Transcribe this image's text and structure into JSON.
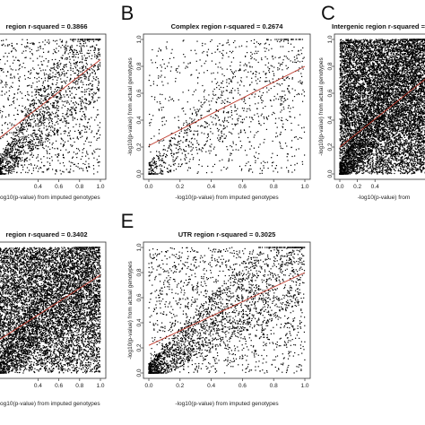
{
  "chart_data": [
    {
      "type": "scatter",
      "letter": "",
      "title": "region r-squared = 0.3866",
      "xlabel": "-log10(p-value) from imputed genotypes",
      "ylabel": "",
      "xticks": [
        "0.4",
        "0.6",
        "0.8",
        "1.0"
      ],
      "yticks": [],
      "xlim": [
        0,
        1
      ],
      "ylim": [
        0,
        1
      ],
      "r_squared": 0.3866,
      "fit_line": {
        "x": [
          0,
          1
        ],
        "y": [
          0.25,
          0.85
        ]
      },
      "density": "medium",
      "n_points": 2400,
      "point_color": "#000000",
      "line_color": "#c0392b"
    },
    {
      "type": "scatter",
      "letter": "B",
      "title": "Complex region r-squared = 0.2674",
      "xlabel": "-log10(p-value) from imputed genotypes",
      "ylabel": "-log10(p-value) from actual genotypes",
      "xticks": [
        "0.0",
        "0.2",
        "0.4",
        "0.6",
        "0.8",
        "1.0"
      ],
      "yticks": [
        "0.0",
        "0.2",
        "0.4",
        "0.6",
        "0.8",
        "1.0"
      ],
      "xlim": [
        0,
        1
      ],
      "ylim": [
        0,
        1
      ],
      "r_squared": 0.2674,
      "fit_line": {
        "x": [
          0,
          1
        ],
        "y": [
          0.21,
          0.8
        ]
      },
      "density": "sparse",
      "n_points": 1300,
      "point_color": "#000000",
      "line_color": "#c0392b"
    },
    {
      "type": "scatter",
      "letter": "C",
      "title": "Intergenic region r-squared =",
      "xlabel": "-log10(p-value) from",
      "ylabel": "-log10(p-value) from actual genotypes",
      "xticks": [
        "0.0",
        "0.2",
        "0.4"
      ],
      "yticks": [
        "0.0",
        "0.2",
        "0.4",
        "0.6",
        "0.8",
        "1.0"
      ],
      "xlim": [
        0,
        1
      ],
      "ylim": [
        0,
        1
      ],
      "r_squared": null,
      "fit_line": {
        "x": [
          0,
          1
        ],
        "y": [
          0.2,
          0.72
        ]
      },
      "density": "very-dense",
      "n_points": 11000,
      "point_color": "#000000",
      "line_color": "#c0392b"
    },
    {
      "type": "scatter",
      "letter": "",
      "title": "region r-squared = 0.3402",
      "xlabel": "-log10(p-value) from imputed genotypes",
      "ylabel": "",
      "xticks": [
        "0.4",
        "0.6",
        "0.8",
        "1.0"
      ],
      "yticks": [],
      "xlim": [
        0,
        1
      ],
      "ylim": [
        0,
        1
      ],
      "r_squared": 0.3402,
      "fit_line": {
        "x": [
          0,
          1
        ],
        "y": [
          0.25,
          0.78
        ]
      },
      "density": "very-dense",
      "n_points": 9000,
      "point_color": "#000000",
      "line_color": "#c0392b"
    },
    {
      "type": "scatter",
      "letter": "E",
      "title": "UTR region r-squared = 0.3025",
      "xlabel": "-log10(p-value) from imputed genotypes",
      "ylabel": "-log10(p-value) from actual genotypes",
      "xticks": [
        "0.0",
        "0.2",
        "0.4",
        "0.6",
        "0.8",
        "1.0"
      ],
      "yticks": [
        "0.0",
        "0.2",
        "0.4",
        "0.6",
        "0.8",
        "1.0"
      ],
      "xlim": [
        0,
        1
      ],
      "ylim": [
        0,
        1
      ],
      "r_squared": 0.3025,
      "fit_line": {
        "x": [
          0,
          1
        ],
        "y": [
          0.22,
          0.8
        ]
      },
      "density": "medium",
      "n_points": 3200,
      "point_color": "#000000",
      "line_color": "#c0392b"
    }
  ]
}
